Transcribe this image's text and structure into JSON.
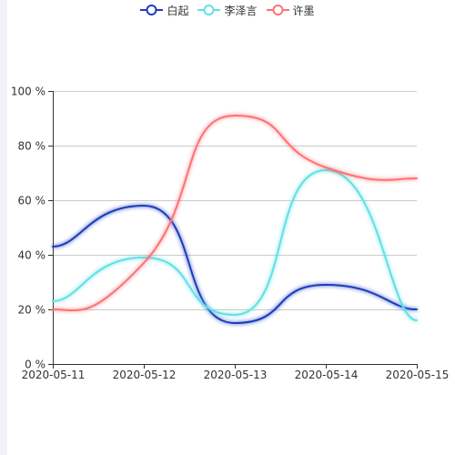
{
  "chart_data": {
    "type": "line",
    "smooth": true,
    "categories": [
      "2020-05-11",
      "2020-05-12",
      "2020-05-13",
      "2020-05-14",
      "2020-05-15"
    ],
    "ylim": [
      0,
      100
    ],
    "y_ticks": [
      0,
      20,
      40,
      60,
      80,
      100
    ],
    "y_tick_suffix": " %",
    "grid": "horizontal",
    "legend_position": "top-center",
    "series": [
      {
        "name": "白起",
        "color": "#1a3cbd",
        "values": [
          43,
          58,
          15,
          29,
          20
        ]
      },
      {
        "name": "李泽言",
        "color": "#62e0e6",
        "values": [
          23,
          39,
          18,
          71,
          16
        ]
      },
      {
        "name": "许墨",
        "color": "#fd7275",
        "values": [
          20,
          37,
          91,
          72,
          68
        ]
      }
    ]
  }
}
